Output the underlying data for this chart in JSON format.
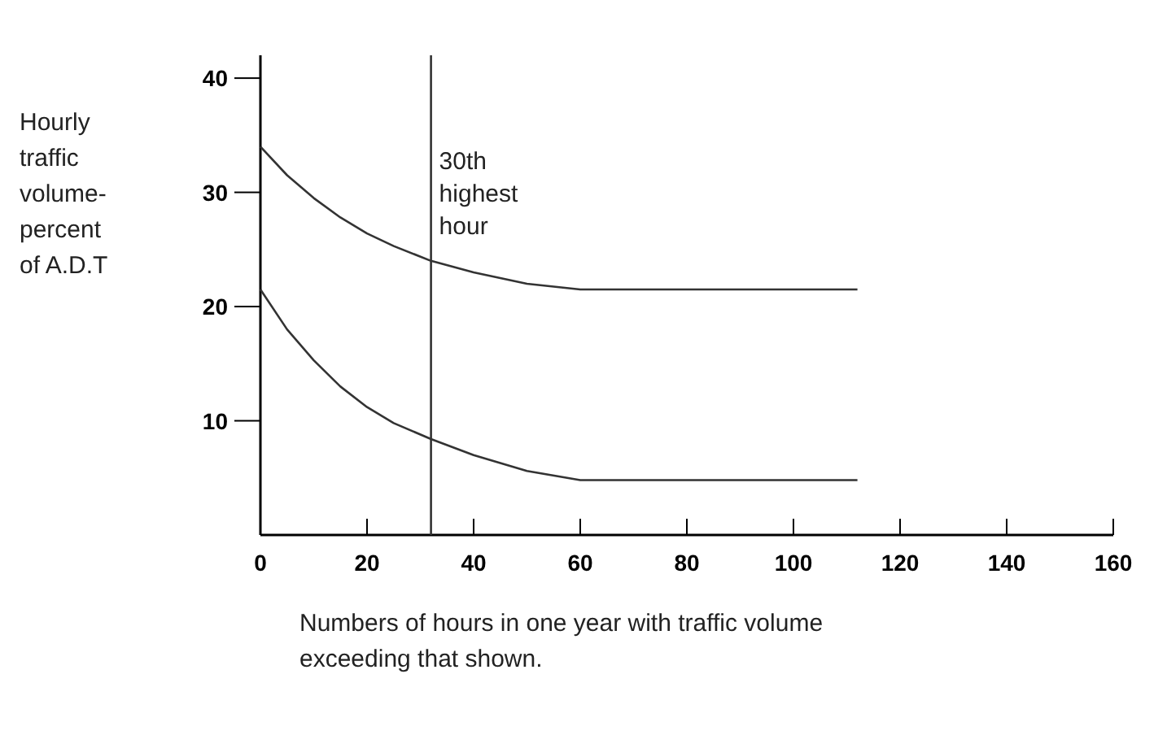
{
  "chart_data": {
    "type": "line",
    "xlabel": "Numbers of hours in one year with traffic volume\nexceeding that shown.",
    "ylabel": "Hourly\ntraffic\nvolume-\npercent\nof A.D.T",
    "x": [
      0,
      5,
      10,
      15,
      20,
      25,
      32,
      40,
      50,
      60,
      62,
      112
    ],
    "series": [
      {
        "color": "#333333",
        "values": [
          34,
          31.5,
          29.5,
          27.8,
          26.4,
          25.3,
          24,
          23,
          22,
          21.5,
          21.5,
          21.5
        ]
      },
      {
        "color": "#333333",
        "values": [
          21.5,
          18,
          15.3,
          13,
          11.2,
          9.8,
          8.4,
          7,
          5.6,
          4.8,
          4.8,
          4.8
        ]
      }
    ],
    "xlim": [
      0,
      160
    ],
    "xticks": [
      0,
      20,
      40,
      60,
      80,
      100,
      120,
      140,
      160
    ],
    "ylim": [
      0,
      42
    ],
    "yticks": [
      10,
      20,
      30,
      40
    ],
    "ref_lines": [
      {
        "axis": "x",
        "value": 32,
        "label": "30th\nhighest\nhour",
        "color": "#333333"
      }
    ],
    "grid": false,
    "marker": "none",
    "line_style": "solid"
  }
}
